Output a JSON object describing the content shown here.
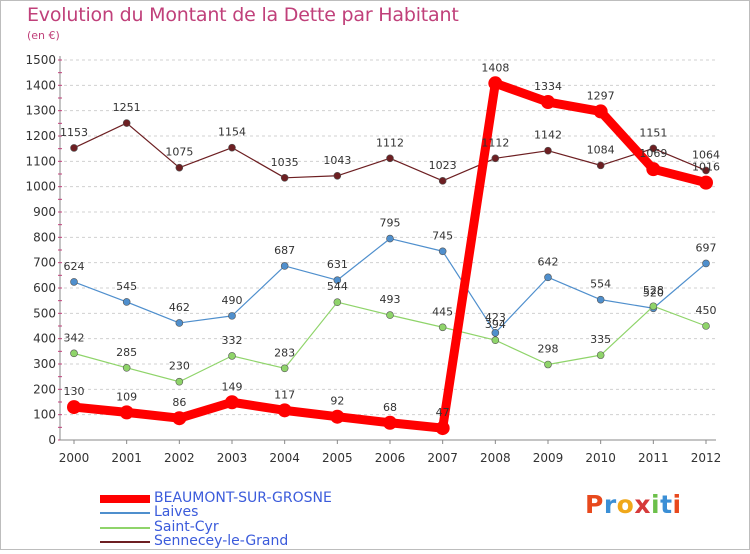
{
  "title": "Evolution du Montant de la Dette par Habitant",
  "subtitle": "(en €)",
  "chart_data": {
    "type": "line",
    "title": "Evolution du Montant de la Dette par Habitant",
    "ylabel": "(en €)",
    "xlabel": "",
    "ylim": [
      0,
      1500
    ],
    "yticks": [
      0,
      100,
      200,
      300,
      400,
      500,
      600,
      700,
      800,
      900,
      1000,
      1100,
      1200,
      1300,
      1400,
      1500
    ],
    "grid": "horizontal dashed",
    "legend_position": "bottom-left",
    "categories": [
      "2000",
      "2001",
      "2002",
      "2003",
      "2004",
      "2005",
      "2006",
      "2007",
      "2008",
      "2009",
      "2010",
      "2011",
      "2012"
    ],
    "series": [
      {
        "name": "BEAUMONT-SUR-GROSNE",
        "color": "#ff0000",
        "values": [
          130,
          109,
          86,
          149,
          117,
          92,
          68,
          47,
          1408,
          1334,
          1297,
          1069,
          1016
        ]
      },
      {
        "name": "Laives",
        "color": "#4f8fcd",
        "values": [
          624,
          545,
          462,
          490,
          687,
          631,
          795,
          745,
          423,
          642,
          554,
          520,
          697
        ]
      },
      {
        "name": "Saint-Cyr",
        "color": "#8fd46a",
        "values": [
          342,
          285,
          230,
          332,
          283,
          544,
          493,
          445,
          394,
          298,
          335,
          528,
          450
        ]
      },
      {
        "name": "Sennecey-le-Grand",
        "color": "#6d1f22",
        "values": [
          1153,
          1251,
          1075,
          1154,
          1035,
          1043,
          1112,
          1023,
          1112,
          1142,
          1084,
          1151,
          1064
        ]
      }
    ]
  },
  "legend": {
    "items": [
      {
        "label": "BEAUMONT-SUR-GROSNE",
        "color": "#ff0000",
        "text_color": "#3b5bdb"
      },
      {
        "label": "Laives",
        "color": "#4f8fcd",
        "text_color": "#3b5bdb"
      },
      {
        "label": "Saint-Cyr",
        "color": "#8fd46a",
        "text_color": "#3b5bdb"
      },
      {
        "label": "Sennecey-le-Grand",
        "color": "#6d1f22",
        "text_color": "#3b5bdb"
      }
    ]
  },
  "logo": {
    "letters": [
      "P",
      "r",
      "o",
      "x",
      "i",
      "t",
      "i"
    ],
    "colors": [
      "#e8491d",
      "#3b8fd6",
      "#f0a81a",
      "#d63a3a",
      "#6cc04a",
      "#3b8fd6",
      "#e8491d"
    ]
  }
}
